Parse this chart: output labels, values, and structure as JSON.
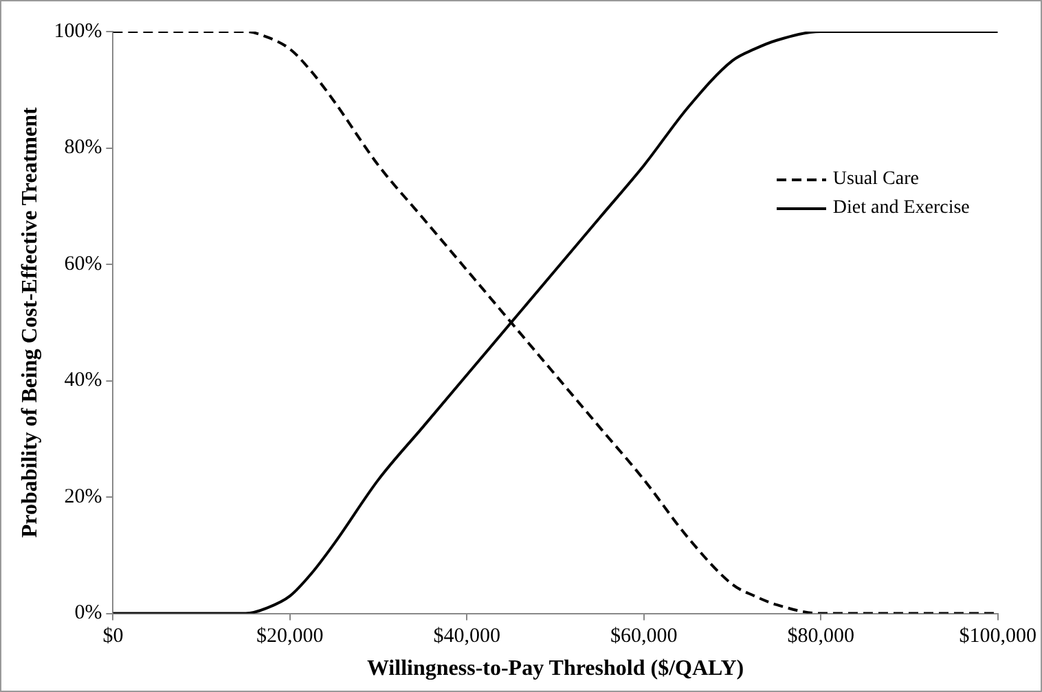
{
  "chart_data": {
    "type": "line",
    "xlabel": "Willingness-to-Pay Threshold ($/QALY)",
    "ylabel": "Probability of Being Cost-Effective Treatment",
    "x": [
      0,
      5000,
      10000,
      15000,
      17500,
      20000,
      22500,
      25000,
      30000,
      35000,
      40000,
      45000,
      50000,
      55000,
      60000,
      65000,
      70000,
      72500,
      75000,
      80000,
      85000,
      90000,
      95000,
      100000
    ],
    "series": [
      {
        "name": "Usual Care",
        "color": "#000000",
        "line_style": "dashed",
        "values": [
          100,
          100,
          100,
          100,
          99,
          97,
          93,
          88,
          77,
          68,
          59,
          50,
          41,
          32,
          23,
          13,
          5,
          3,
          1.5,
          0,
          0,
          0,
          0,
          0
        ]
      },
      {
        "name": "Diet and Exercise",
        "color": "#000000",
        "line_style": "solid",
        "values": [
          0,
          0,
          0,
          0,
          1,
          3,
          7,
          12,
          23,
          32,
          41,
          50,
          59,
          68,
          77,
          87,
          95,
          97,
          98.5,
          100,
          100,
          100,
          100,
          100
        ]
      }
    ],
    "xlim": [
      0,
      100000
    ],
    "xticks": [
      {
        "value": 0,
        "label": "$0"
      },
      {
        "value": 20000,
        "label": "$20,000"
      },
      {
        "value": 40000,
        "label": "$40,000"
      },
      {
        "value": 60000,
        "label": "$60,000"
      },
      {
        "value": 80000,
        "label": "$80,000"
      },
      {
        "value": 100000,
        "label": "$100,000"
      }
    ],
    "ylim": [
      0,
      100
    ],
    "yticks": [
      {
        "value": 0,
        "label": "0%"
      },
      {
        "value": 20,
        "label": "20%"
      },
      {
        "value": 40,
        "label": "40%"
      },
      {
        "value": 60,
        "label": "60%"
      },
      {
        "value": 80,
        "label": "80%"
      },
      {
        "value": 100,
        "label": "100%"
      }
    ],
    "grid": false,
    "legend": "right",
    "marker": "none"
  }
}
